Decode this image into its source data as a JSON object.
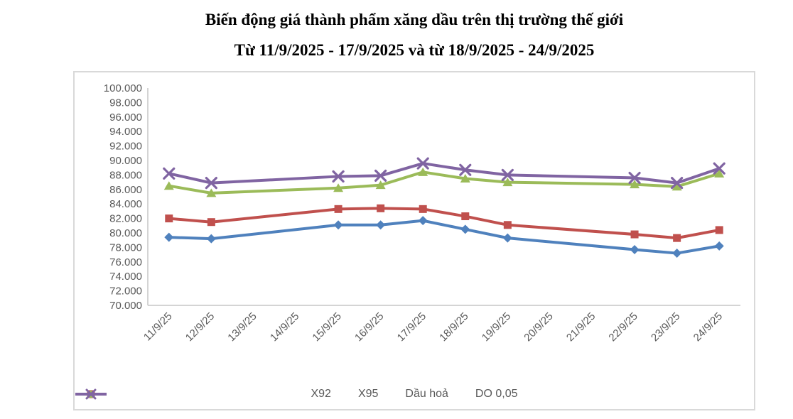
{
  "title": {
    "line1": "Biến động giá thành phẩm xăng dầu trên thị trường thế giới",
    "line2": "Từ 11/9/2025 - 17/9/2025 và từ 18/9/2025 - 24/9/2025"
  },
  "chart_data": {
    "type": "line",
    "categories": [
      "11/9/25",
      "12/9/25",
      "13/9/25",
      "14/9/25",
      "15/9/25",
      "16/9/25",
      "17/9/25",
      "18/9/25",
      "19/9/25",
      "20/9/25",
      "21/9/25",
      "22/9/25",
      "23/9/25",
      "24/9/25"
    ],
    "series": [
      {
        "name": "X92",
        "color": "#4F81BD",
        "marker": "diamond",
        "values": [
          79400,
          79200,
          null,
          null,
          81100,
          81100,
          81700,
          80500,
          79300,
          null,
          null,
          77700,
          77200,
          78200
        ]
      },
      {
        "name": "X95",
        "color": "#C0504D",
        "marker": "square",
        "values": [
          82000,
          81500,
          null,
          null,
          83300,
          83400,
          83300,
          82300,
          81100,
          null,
          null,
          79800,
          79300,
          80400
        ]
      },
      {
        "name": "Dầu hoả",
        "color": "#9BBB59",
        "marker": "triangle",
        "values": [
          86500,
          85500,
          null,
          null,
          86200,
          86600,
          88400,
          87500,
          87000,
          null,
          null,
          86700,
          86400,
          88200
        ]
      },
      {
        "name": "DO 0,05",
        "color": "#8064A2",
        "marker": "x",
        "values": [
          88200,
          86900,
          null,
          null,
          87800,
          87900,
          89600,
          88700,
          88000,
          null,
          null,
          87600,
          86900,
          88900
        ]
      }
    ],
    "y_axis": {
      "min": 70000,
      "max": 100000,
      "step": 2000,
      "tick_labels": [
        "100.000",
        "98.000",
        "96.000",
        "94.000",
        "92.000",
        "90.000",
        "88.000",
        "86.000",
        "84.000",
        "82.000",
        "80.000",
        "78.000",
        "76.000",
        "74.000",
        "72.000",
        "70.000"
      ]
    },
    "x_axis": {
      "label_rotation_deg": -45
    },
    "legend_position": "bottom",
    "grid": false,
    "axis_color": "#C6C6C6",
    "text_color": "#595959"
  }
}
